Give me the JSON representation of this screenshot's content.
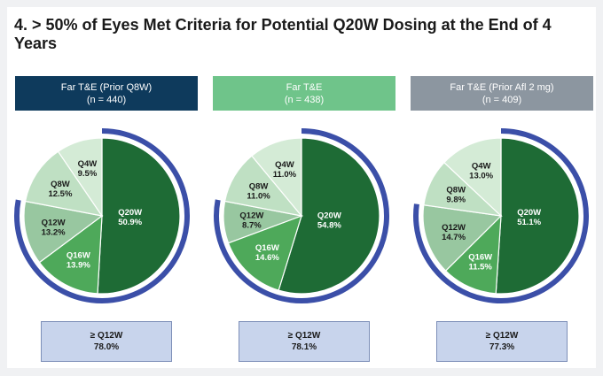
{
  "title": "4. > 50% of Eyes Met Criteria for Potential Q20W Dosing at the End of 4 Years",
  "colors": {
    "header_1": "#0e3a5c",
    "header_2": "#6fc48a",
    "header_3": "#8c96a0",
    "arc": "#3b4fa8",
    "summary_fill": "#c8d4ec"
  },
  "chart_data": [
    {
      "type": "pie",
      "title": "Far T&E (Prior Q8W)",
      "subtitle": "(n = 440)",
      "slices": [
        {
          "label": "Q20W",
          "value": 50.9,
          "value_label": "50.9%"
        },
        {
          "label": "Q16W",
          "value": 13.9,
          "value_label": "13.9%"
        },
        {
          "label": "Q12W",
          "value": 13.2,
          "value_label": "13.2%"
        },
        {
          "label": "Q8W",
          "value": 12.5,
          "value_label": "12.5%"
        },
        {
          "label": "Q4W",
          "value": 9.5,
          "value_label": "9.5%"
        }
      ],
      "summary_label": "≥ Q12W",
      "summary_value": "78.0%"
    },
    {
      "type": "pie",
      "title": "Far T&E",
      "subtitle": "(n = 438)",
      "slices": [
        {
          "label": "Q20W",
          "value": 54.8,
          "value_label": "54.8%"
        },
        {
          "label": "Q16W",
          "value": 14.6,
          "value_label": "14.6%"
        },
        {
          "label": "Q12W",
          "value": 8.7,
          "value_label": "8.7%"
        },
        {
          "label": "Q8W",
          "value": 11.0,
          "value_label": "11.0%"
        },
        {
          "label": "Q4W",
          "value": 11.0,
          "value_label": "11.0%"
        }
      ],
      "summary_label": "≥ Q12W",
      "summary_value": "78.1%"
    },
    {
      "type": "pie",
      "title": "Far T&E (Prior Afl 2 mg)",
      "subtitle": "(n = 409)",
      "slices": [
        {
          "label": "Q20W",
          "value": 51.1,
          "value_label": "51.1%"
        },
        {
          "label": "Q16W",
          "value": 11.5,
          "value_label": "11.5%"
        },
        {
          "label": "Q12W",
          "value": 14.7,
          "value_label": "14.7%"
        },
        {
          "label": "Q8W",
          "value": 9.8,
          "value_label": "9.8%"
        },
        {
          "label": "Q4W",
          "value": 13.0,
          "value_label": "13.0%"
        }
      ],
      "summary_label": "≥ Q12W",
      "summary_value": "77.3%"
    }
  ]
}
